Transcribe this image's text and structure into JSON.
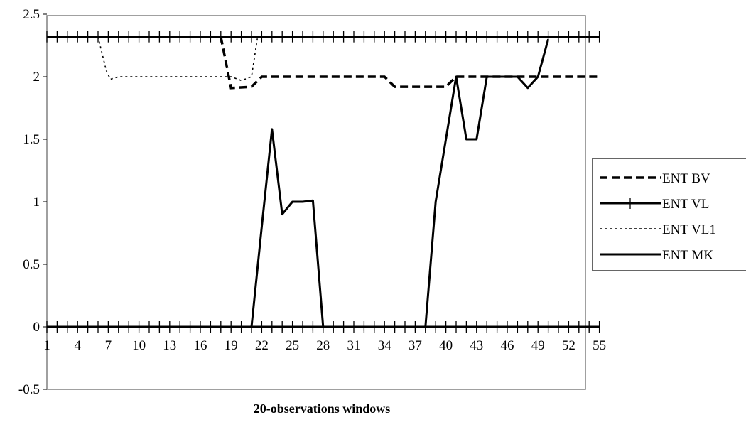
{
  "chart_data": {
    "type": "line",
    "title": "",
    "xlabel": "20-observations windows",
    "ylabel": "",
    "xlim": [
      1,
      55
    ],
    "ylim": [
      -0.5,
      2.5
    ],
    "x_tick_labels": [
      "1",
      "4",
      "7",
      "10",
      "13",
      "16",
      "19",
      "22",
      "25",
      "28",
      "31",
      "34",
      "37",
      "40",
      "43",
      "46",
      "49",
      "52",
      "55"
    ],
    "y_tick_labels": [
      "2.5",
      "2",
      "1.5",
      "1",
      "0.5",
      "0",
      "-0.5"
    ],
    "grid": false,
    "legend_position": "right",
    "colors": {
      "line": "#000000",
      "frame": "#808080",
      "background": "#ffffff"
    },
    "series": [
      {
        "name": "ENT BV",
        "style": "dashed",
        "points": [
          [
            18,
            2.32
          ],
          [
            19,
            1.91
          ],
          [
            21,
            1.92
          ],
          [
            22,
            2.0
          ],
          [
            34,
            2.0
          ],
          [
            35,
            1.92
          ],
          [
            40,
            1.92
          ],
          [
            41,
            2.0
          ],
          [
            55,
            2.0
          ]
        ]
      },
      {
        "name": "ENT VL",
        "style": "plus-marker",
        "points": [
          [
            1,
            2.32
          ],
          [
            55,
            2.32
          ]
        ],
        "points_lower": [
          [
            1,
            0
          ],
          [
            55,
            0
          ]
        ]
      },
      {
        "name": "ENT VL1",
        "style": "dotted",
        "points": [
          [
            6,
            2.32
          ],
          [
            6.8,
            2.05
          ],
          [
            7.2,
            1.98
          ],
          [
            8,
            2.0
          ],
          [
            19,
            2.0
          ],
          [
            20,
            1.97
          ],
          [
            21,
            2.0
          ],
          [
            21.6,
            2.32
          ]
        ]
      },
      {
        "name": "ENT MK",
        "style": "solid",
        "points": [
          [
            1,
            0
          ],
          [
            20,
            0
          ],
          [
            21,
            0
          ],
          [
            22,
            0.8
          ],
          [
            23,
            1.58
          ],
          [
            24,
            0.9
          ],
          [
            25,
            1.0
          ],
          [
            26,
            1.0
          ],
          [
            27,
            1.01
          ],
          [
            28,
            0
          ],
          [
            29,
            0
          ],
          [
            37,
            0
          ],
          [
            38,
            0
          ],
          [
            39,
            1.0
          ],
          [
            40,
            1.5
          ],
          [
            41,
            2.0
          ],
          [
            42,
            1.5
          ],
          [
            43,
            1.5
          ],
          [
            44,
            2.0
          ],
          [
            45,
            2.0
          ],
          [
            47,
            2.0
          ],
          [
            48,
            1.91
          ],
          [
            49,
            2.0
          ],
          [
            50,
            2.3
          ]
        ]
      }
    ]
  }
}
